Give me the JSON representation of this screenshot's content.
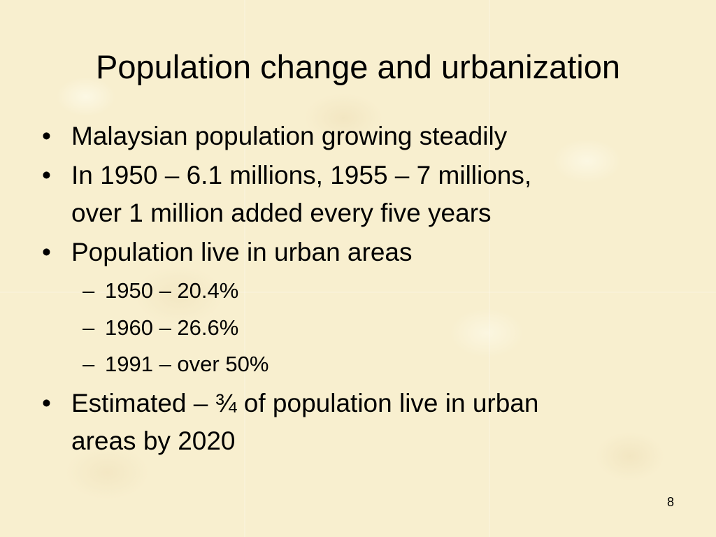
{
  "slide": {
    "title": "Population change and urbanization",
    "bullet_marker": "•",
    "sub_marker": "–",
    "bullets": [
      {
        "lines": [
          "Malaysian population growing steadily"
        ]
      },
      {
        "lines": [
          "In 1950 – 6.1 millions, 1955 – 7 millions,",
          "over 1 million added every five years"
        ]
      },
      {
        "lines": [
          "Population live in urban areas"
        ]
      },
      {
        "lines": [
          "Estimated – ¾ of population live in urban",
          "areas by 2020"
        ]
      }
    ],
    "sub_items": [
      "1950 – 20.4%",
      "1960 – 26.6%",
      "1991 – over 50%"
    ],
    "page_number": "8"
  }
}
